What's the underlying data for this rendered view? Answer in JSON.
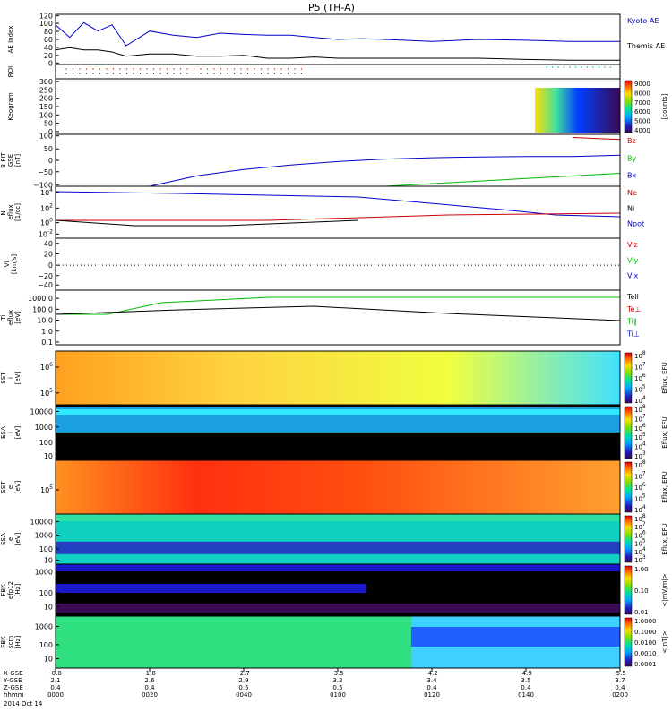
{
  "title": "P5 (TH-A)",
  "date_label": "2014 Oct 14",
  "footer_rows": [
    "X-GSE",
    "Y-GSE",
    "Z-GSE",
    "hhmm"
  ],
  "footer_columns": [
    {
      "x": "-0.8",
      "y": "2.1",
      "z": "0.4",
      "t": "0000"
    },
    {
      "x": "-1.8",
      "y": "2.6",
      "z": "0.4",
      "t": "0020"
    },
    {
      "x": "-2.7",
      "y": "2.9",
      "z": "0.5",
      "t": "0040"
    },
    {
      "x": "-3.5",
      "y": "3.2",
      "z": "0.5",
      "t": "0100"
    },
    {
      "x": "-4.2",
      "y": "3.4",
      "z": "0.4",
      "t": "0120"
    },
    {
      "x": "-4.9",
      "y": "3.5",
      "z": "0.4",
      "t": "0140"
    },
    {
      "x": "-5.5",
      "y": "3.7",
      "z": "0.4",
      "t": "0200"
    }
  ],
  "colors": {
    "blue": "#0000cc",
    "green": "#00bb00",
    "red": "#cc0000",
    "black": "#000000"
  },
  "chart_data": [
    {
      "type": "line",
      "ylabel": "AE Index",
      "yticks": [
        "120",
        "100",
        "80",
        "60",
        "40",
        "20",
        "0"
      ],
      "ylim": [
        0,
        120
      ],
      "x": [
        0,
        3,
        6,
        9,
        12,
        15,
        20,
        25,
        30,
        35,
        40,
        45,
        50,
        55,
        60,
        65,
        70,
        80,
        90,
        100,
        110,
        120
      ],
      "series": [
        {
          "name": "Kyoto AE",
          "color": "blue",
          "values": [
            95,
            65,
            100,
            80,
            95,
            45,
            80,
            70,
            65,
            75,
            72,
            70,
            70,
            65,
            60,
            62,
            60,
            55,
            60,
            58,
            55,
            55
          ]
        },
        {
          "name": "Themis AE",
          "color": "black",
          "values": [
            35,
            40,
            35,
            35,
            30,
            20,
            25,
            25,
            20,
            20,
            22,
            15,
            15,
            18,
            15,
            15,
            15,
            15,
            15,
            12,
            10,
            10
          ]
        }
      ]
    },
    {
      "type": "scatter",
      "ylabel": "ROI"
    },
    {
      "type": "heatmap",
      "ylabel": "Keogram",
      "yticks": [
        "300",
        "250",
        "200",
        "150",
        "100",
        "50",
        "0"
      ],
      "colorbar_ticks": [
        "9000",
        "8000",
        "7000",
        "6000",
        "5000",
        "4000"
      ],
      "colorbar_label": "[counts]"
    },
    {
      "type": "line",
      "ylabel": "B FIT\nGSE\n[nT]",
      "yticks": [
        "100",
        "50",
        "0",
        "−50",
        "−100"
      ],
      "ylim": [
        -100,
        100
      ],
      "x": [
        0,
        10,
        20,
        30,
        40,
        50,
        60,
        70,
        80,
        90,
        100,
        110,
        120
      ],
      "series": [
        {
          "name": "Bz",
          "color": "red",
          "values": [
            null,
            null,
            null,
            null,
            null,
            null,
            null,
            null,
            null,
            null,
            null,
            88,
            80
          ]
        },
        {
          "name": "By",
          "color": "green",
          "values": [
            null,
            null,
            null,
            null,
            null,
            null,
            null,
            -100,
            -90,
            -80,
            -70,
            -60,
            -50
          ]
        },
        {
          "name": "Bx",
          "color": "blue",
          "values": [
            null,
            null,
            -100,
            -60,
            -35,
            -18,
            -5,
            5,
            10,
            13,
            15,
            15,
            20
          ]
        }
      ]
    },
    {
      "type": "line",
      "ylabel": "Ni\neflux\n[1/cc]",
      "yticks": [
        "10",
        "10",
        "10",
        "10"
      ],
      "ytick_exponents": [
        "4",
        "2",
        "0",
        "-2"
      ],
      "series_names": [
        "Ne",
        "Ni",
        "Npot"
      ]
    },
    {
      "type": "line",
      "ylabel": "Vi\n[km/s]",
      "yticks": [
        "40",
        "20",
        "0",
        "−20",
        "−40"
      ],
      "ylim": [
        -50,
        50
      ],
      "series_names": [
        "Viz",
        "Viy",
        "Vix"
      ]
    },
    {
      "type": "line",
      "ylabel": "Ti\neflux\n[eV]",
      "yticks": [
        "1000.0",
        "100.0",
        "10.0",
        "1.0",
        "0.1"
      ],
      "series_names": [
        "Tell",
        "Te⊥",
        "Ti‖",
        "Ti⊥"
      ]
    },
    {
      "type": "heatmap",
      "ylabel": "SST\ni\n[eV]",
      "yticks": [
        "10",
        "10"
      ],
      "ytick_exponents": [
        "6",
        "5"
      ],
      "colorbar_ticks": [
        "10",
        "10",
        "10",
        "10",
        "10"
      ],
      "colorbar_exponents": [
        "8",
        "7",
        "6",
        "5",
        "4"
      ],
      "colorbar_label": "Eflux, EFU"
    },
    {
      "type": "heatmap",
      "ylabel": "ESA\ni\n[eV]",
      "yticks": [
        "10000",
        "1000",
        "100",
        "10"
      ],
      "colorbar_ticks": [
        "10",
        "10",
        "10",
        "10",
        "10",
        "10"
      ],
      "colorbar_exponents": [
        "8",
        "7",
        "6",
        "5",
        "4",
        "3"
      ],
      "colorbar_label": "Eflux, EFU"
    },
    {
      "type": "heatmap",
      "ylabel": "SST\ne\n[eV]",
      "yticks": [
        "10"
      ],
      "ytick_exponents": [
        "5"
      ],
      "colorbar_ticks": [
        "10",
        "10",
        "10",
        "10",
        "10"
      ],
      "colorbar_exponents": [
        "8",
        "7",
        "6",
        "5",
        "4"
      ],
      "colorbar_label": "Eflux, EFU"
    },
    {
      "type": "heatmap",
      "ylabel": "ESA\ne\n[eV]",
      "yticks": [
        "10000",
        "1000",
        "100",
        "10"
      ],
      "colorbar_ticks": [
        "10",
        "10",
        "10",
        "10",
        "10",
        "10"
      ],
      "colorbar_exponents": [
        "8",
        "7",
        "6",
        "5",
        "4",
        "3"
      ],
      "colorbar_label": "Eflux, EFU"
    },
    {
      "type": "heatmap",
      "ylabel": "FBK\nefp12\n[Hz]",
      "yticks": [
        "1000",
        "100",
        "10"
      ],
      "colorbar_ticks": [
        "1.00",
        "0.10",
        "0.01"
      ],
      "colorbar_label": "<|mV/m|>"
    },
    {
      "type": "heatmap",
      "ylabel": "FBK\nscm\n[Hz]",
      "yticks": [
        "1000",
        "100",
        "10"
      ],
      "colorbar_ticks": [
        "1.0000",
        "0.1000",
        "0.0100",
        "0.0010",
        "0.0001"
      ],
      "colorbar_label": "<|nT|>"
    }
  ]
}
